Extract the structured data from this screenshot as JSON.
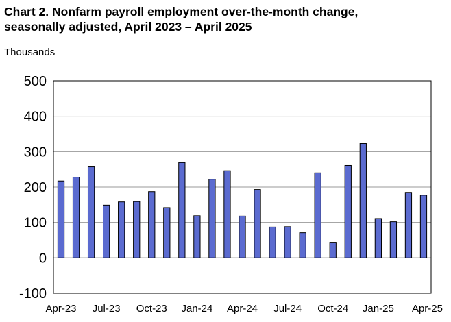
{
  "chart_data": {
    "type": "bar",
    "title_line1": "Chart 2. Nonfarm payroll employment over-the-month change,",
    "title_line2": "seasonally adjusted, April 2023 – April 2025",
    "ylabel": "Thousands",
    "xlabel": "",
    "ylim": [
      -100,
      500
    ],
    "yticks": [
      "500",
      "400",
      "300",
      "200",
      "100",
      "0",
      "-100"
    ],
    "grid": true,
    "bar_color": "#5b6bd0",
    "categories": [
      "Apr-23",
      "May-23",
      "Jun-23",
      "Jul-23",
      "Aug-23",
      "Sep-23",
      "Oct-23",
      "Nov-23",
      "Dec-23",
      "Jan-24",
      "Feb-24",
      "Mar-24",
      "Apr-24",
      "May-24",
      "Jun-24",
      "Jul-24",
      "Aug-24",
      "Sep-24",
      "Oct-24",
      "Nov-24",
      "Dec-24",
      "Jan-25",
      "Feb-25",
      "Mar-25",
      "Apr-25"
    ],
    "x_tick_labels": [
      "Apr-23",
      "Jul-23",
      "Oct-23",
      "Jan-24",
      "Apr-24",
      "Jul-24",
      "Oct-24",
      "Jan-25",
      "Apr-25"
    ],
    "values": [
      217,
      228,
      257,
      149,
      158,
      159,
      187,
      142,
      269,
      119,
      222,
      246,
      118,
      193,
      87,
      88,
      71,
      240,
      44,
      261,
      323,
      111,
      102,
      185,
      177
    ]
  }
}
